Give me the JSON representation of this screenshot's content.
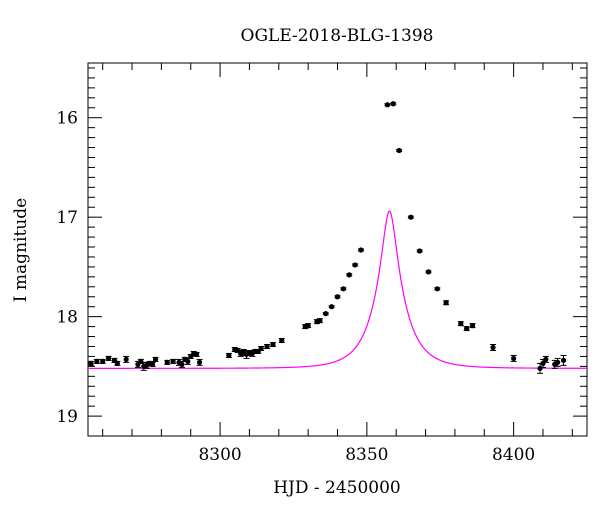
{
  "chart_data": {
    "type": "scatter",
    "title": "OGLE-2018-BLG-1398",
    "xlabel": "HJD - 2450000",
    "ylabel": "I magnitude",
    "xlim": [
      8255,
      8425
    ],
    "ylim": [
      19.2,
      15.45
    ],
    "y_inverted": true,
    "grid": false,
    "x_ticks": [
      8300,
      8350,
      8400
    ],
    "y_ticks": [
      16,
      17,
      18,
      19
    ],
    "series": [
      {
        "kind": "points",
        "color": "#000000",
        "x": [
          8256,
          8258,
          8260,
          8262,
          8264,
          8265,
          8268,
          8272,
          8273,
          8274,
          8275,
          8276,
          8277,
          8278,
          8282,
          8284,
          8286,
          8287,
          8288,
          8289,
          8290,
          8291,
          8292,
          8293,
          8303,
          8305,
          8306,
          8307,
          8308,
          8309,
          8310,
          8311,
          8312,
          8313,
          8314,
          8316,
          8318,
          8321,
          8329,
          8330,
          8333,
          8334,
          8336,
          8338,
          8340,
          8342,
          8344,
          8346,
          8348,
          8357,
          8359,
          8361,
          8365,
          8368,
          8371,
          8374,
          8377,
          8382,
          8384,
          8386,
          8393,
          8400,
          8409,
          8410,
          8411,
          8414,
          8415,
          8417
        ],
        "y": [
          18.47,
          18.45,
          18.45,
          18.42,
          18.44,
          18.47,
          18.43,
          18.48,
          18.45,
          18.5,
          18.49,
          18.47,
          18.48,
          18.43,
          18.46,
          18.45,
          18.46,
          18.48,
          18.43,
          18.45,
          18.4,
          18.37,
          18.38,
          18.46,
          18.39,
          18.33,
          18.34,
          18.37,
          18.36,
          18.38,
          18.37,
          18.37,
          18.35,
          18.35,
          18.32,
          18.3,
          18.28,
          18.24,
          18.1,
          18.09,
          18.05,
          18.04,
          17.97,
          17.9,
          17.8,
          17.72,
          17.58,
          17.48,
          17.33,
          15.87,
          15.86,
          16.33,
          17.0,
          17.34,
          17.55,
          17.72,
          17.86,
          18.07,
          18.12,
          18.09,
          18.31,
          18.42,
          18.52,
          18.47,
          18.43,
          18.48,
          18.46,
          18.44
        ],
        "yerr": [
          0.02,
          0.02,
          0.02,
          0.02,
          0.02,
          0.02,
          0.03,
          0.03,
          0.02,
          0.04,
          0.03,
          0.02,
          0.02,
          0.02,
          0.02,
          0.02,
          0.03,
          0.03,
          0.02,
          0.03,
          0.02,
          0.02,
          0.02,
          0.03,
          0.02,
          0.02,
          0.02,
          0.03,
          0.03,
          0.04,
          0.02,
          0.03,
          0.02,
          0.02,
          0.02,
          0.02,
          0.02,
          0.02,
          0.02,
          0.02,
          0.02,
          0.02,
          0.01,
          0.01,
          0.01,
          0.01,
          0.01,
          0.01,
          0.01,
          0.01,
          0.01,
          0.01,
          0.01,
          0.01,
          0.01,
          0.01,
          0.02,
          0.02,
          0.02,
          0.02,
          0.03,
          0.03,
          0.05,
          0.04,
          0.03,
          0.04,
          0.04,
          0.05
        ]
      },
      {
        "kind": "model-curve",
        "color": "#ff00ff",
        "t0": 8357.7,
        "tE": 9.5,
        "u0": 0.238,
        "baseline_mag": 18.52
      }
    ]
  }
}
